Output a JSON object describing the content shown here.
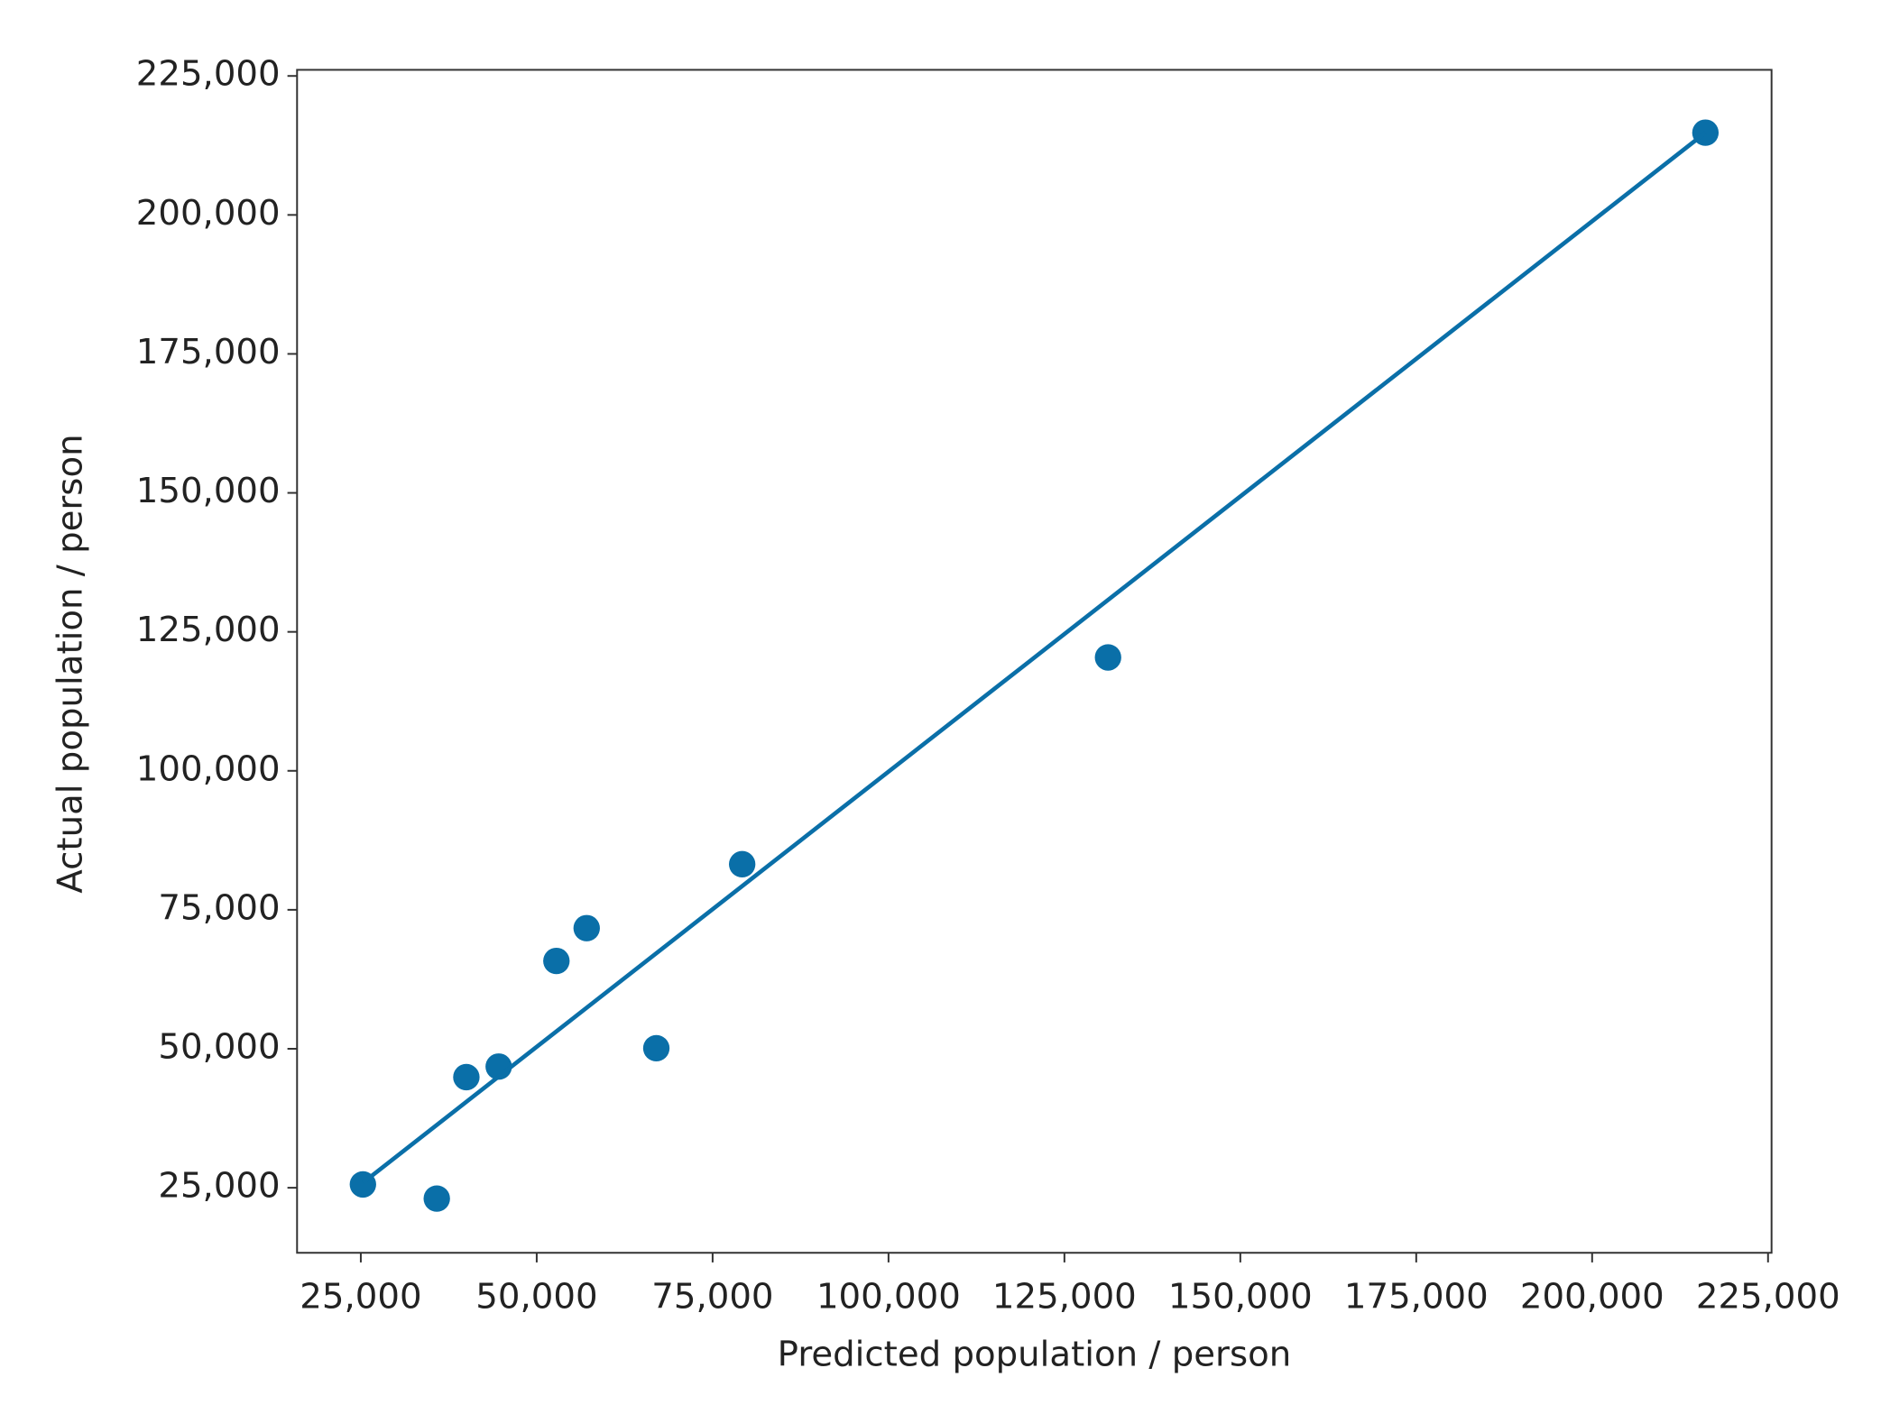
{
  "chart_data": {
    "type": "scatter",
    "xlabel": "Predicted population / person",
    "ylabel": "Actual population / person",
    "xlim": [
      15940,
      225500
    ],
    "ylim": [
      13300,
      226100
    ],
    "xticks": [
      {
        "value": 25000,
        "label": "25,000"
      },
      {
        "value": 50000,
        "label": "50,000"
      },
      {
        "value": 75000,
        "label": "75,000"
      },
      {
        "value": 100000,
        "label": "100,000"
      },
      {
        "value": 125000,
        "label": "125,000"
      },
      {
        "value": 150000,
        "label": "150,000"
      },
      {
        "value": 175000,
        "label": "175,000"
      },
      {
        "value": 200000,
        "label": "200,000"
      },
      {
        "value": 225000,
        "label": "225,000"
      }
    ],
    "yticks": [
      {
        "value": 25000,
        "label": "25,000"
      },
      {
        "value": 50000,
        "label": "50,000"
      },
      {
        "value": 75000,
        "label": "75,000"
      },
      {
        "value": 100000,
        "label": "100,000"
      },
      {
        "value": 125000,
        "label": "125,000"
      },
      {
        "value": 150000,
        "label": "150,000"
      },
      {
        "value": 175000,
        "label": "175,000"
      },
      {
        "value": 200000,
        "label": "200,000"
      },
      {
        "value": 225000,
        "label": "225,000"
      }
    ],
    "grid": false,
    "series": [
      {
        "type": "scatter",
        "color": "#0a6fa8",
        "x": [
          25300,
          35800,
          40000,
          44600,
          52800,
          57100,
          67000,
          79200,
          131200,
          216100
        ],
        "y": [
          25600,
          23050,
          44900,
          46800,
          65800,
          71700,
          50100,
          83200,
          120400,
          214800
        ]
      },
      {
        "type": "line",
        "color": "#0a6fa8",
        "x": [
          25300,
          216100
        ],
        "y": [
          25900,
          214800
        ]
      }
    ]
  }
}
